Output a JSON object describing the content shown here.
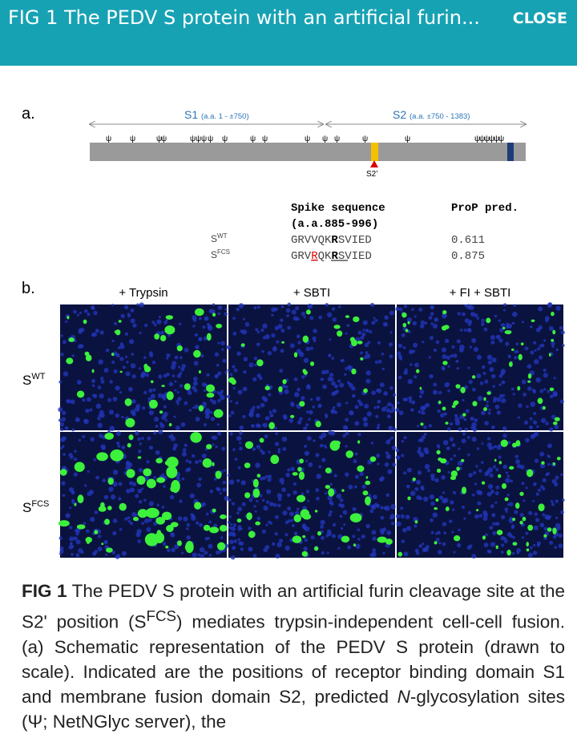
{
  "header": {
    "title": "FIG 1 The PEDV S protein with an artificial furin...",
    "close": "CLOSE"
  },
  "panel_a": {
    "label": "a.",
    "s1": {
      "name": "S1",
      "range": "(a.a. 1 - ±750)"
    },
    "s2": {
      "name": "S2",
      "range": "(a.a. ±750 - 1383)"
    },
    "glyco_symbol": "ψ",
    "cleavage_label": "S2’",
    "table": {
      "header_seq": "Spike sequence",
      "header_range": "(a.a.885-996)",
      "header_pred": "ProP pred.",
      "rows": [
        {
          "name": "S",
          "sup": "WT",
          "seq": [
            "GRVVQK",
            "R",
            "SVIED"
          ],
          "pred": "0.611"
        },
        {
          "name": "S",
          "sup": "FCS",
          "seq": [
            "GRV",
            "R",
            "QK",
            "R",
            "SVIED"
          ],
          "pred": "0.875"
        }
      ]
    }
  },
  "panel_b": {
    "label": "b.",
    "columns": [
      "+ Trypsin",
      "+ SBTI",
      "+ FI + SBTI"
    ],
    "rows": [
      {
        "name": "S",
        "sup": "WT"
      },
      {
        "name": "S",
        "sup": "FCS"
      }
    ]
  },
  "caption": {
    "label": "FIG 1",
    "text_1": " The PEDV S protein with an artificial furin cleavage site at the S2' position (S",
    "sup": "FCS",
    "text_2": ") mediates trypsin-independent cell-cell fusion. (a) Schematic representation of the PEDV S protein (drawn to scale). Indicated are the positions of receptor binding domain S1 and membrane fusion domain S2, predicted ",
    "italic": "N",
    "text_3": "-glycosylation sites (Ψ; NetNGlyc server), the"
  }
}
